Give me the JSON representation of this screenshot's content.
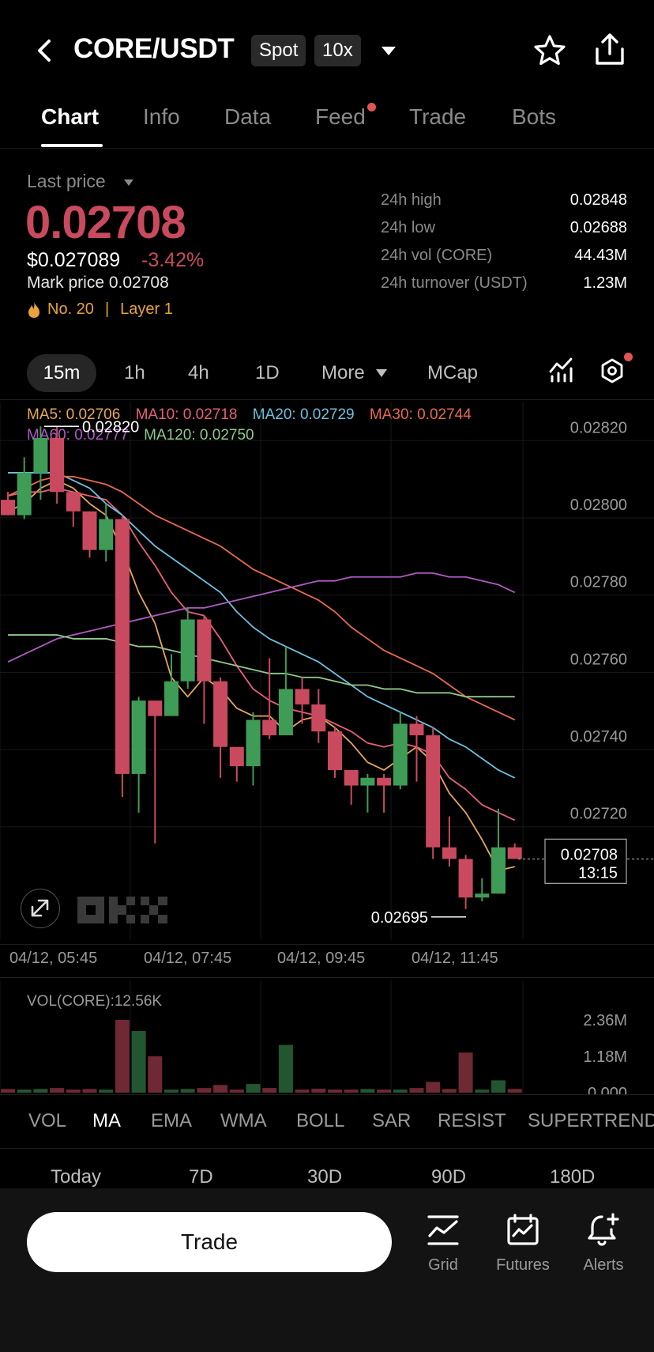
{
  "header": {
    "pair": "CORE/USDT",
    "market_type": "Spot",
    "leverage": "10x"
  },
  "tabs": [
    {
      "label": "Chart",
      "active": true
    },
    {
      "label": "Info"
    },
    {
      "label": "Data"
    },
    {
      "label": "Feed",
      "has_dot": true
    },
    {
      "label": "Trade"
    },
    {
      "label": "Bots"
    }
  ],
  "price": {
    "label": "Last price",
    "last": "0.02708",
    "usd": "$0.027089",
    "change": "-3.42%",
    "mark": "Mark price 0.02708",
    "rank": "No. 20",
    "rank_sep": "|",
    "category": "Layer 1",
    "down_color": "#c94a5e",
    "up_color": "#3f9c57"
  },
  "stats": [
    {
      "label": "24h high",
      "value": "0.02848"
    },
    {
      "label": "24h low",
      "value": "0.02688"
    },
    {
      "label": "24h vol (CORE)",
      "value": "44.43M"
    },
    {
      "label": "24h turnover (USDT)",
      "value": "1.23M"
    }
  ],
  "intervals": {
    "active": "15m",
    "items": [
      "1h",
      "4h",
      "1D",
      "More",
      "MCap"
    ]
  },
  "ma_legend": {
    "ma5": "MA5: 0.02706",
    "ma10": "MA10: 0.02718",
    "ma20": "MA20: 0.02729",
    "ma30": "MA30: 0.02744",
    "ma60": "MA60: 0.02777",
    "ma120": "MA120: 0.02750"
  },
  "chart_data": {
    "type": "candlestick",
    "y_ticks": [
      "0.02820",
      "0.02800",
      "0.02780",
      "0.02760",
      "0.02740",
      "0.02720"
    ],
    "ylim": [
      0.02688,
      0.02826
    ],
    "x_ticks": [
      "04/12, 05:45",
      "04/12, 07:45",
      "04/12, 09:45",
      "04/12, 11:45"
    ],
    "high_marker": "0.02820",
    "low_marker": "0.02695",
    "current_price": "0.02708",
    "countdown": "13:15",
    "candles": [
      [
        0.02801,
        0.02797,
        0.02803,
        0.02797
      ],
      [
        0.02797,
        0.02808,
        0.02812,
        0.02796
      ],
      [
        0.02808,
        0.02817,
        0.0282,
        0.02801
      ],
      [
        0.02817,
        0.02803,
        0.0282,
        0.028
      ],
      [
        0.02803,
        0.02798,
        0.02802,
        0.02794
      ],
      [
        0.02798,
        0.02788,
        0.02798,
        0.02786
      ],
      [
        0.02788,
        0.02796,
        0.028,
        0.02785
      ],
      [
        0.02796,
        0.0273,
        0.02797,
        0.02724
      ],
      [
        0.0273,
        0.02749,
        0.0275,
        0.0272
      ],
      [
        0.02749,
        0.02745,
        0.02746,
        0.02712
      ],
      [
        0.02745,
        0.02754,
        0.02761,
        0.0275
      ],
      [
        0.02754,
        0.0277,
        0.02773,
        0.02752
      ],
      [
        0.0277,
        0.02754,
        0.02771,
        0.02743
      ],
      [
        0.02754,
        0.02737,
        0.02755,
        0.02729
      ],
      [
        0.02737,
        0.02732,
        0.02736,
        0.02728
      ],
      [
        0.02732,
        0.02744,
        0.02746,
        0.02727
      ],
      [
        0.02744,
        0.0274,
        0.0276,
        0.02739
      ],
      [
        0.0274,
        0.02752,
        0.02763,
        0.02742
      ],
      [
        0.02752,
        0.02748,
        0.02755,
        0.02743
      ],
      [
        0.02748,
        0.02741,
        0.02752,
        0.02738
      ],
      [
        0.02741,
        0.02731,
        0.02742,
        0.02729
      ],
      [
        0.02731,
        0.02727,
        0.02731,
        0.02722
      ],
      [
        0.02727,
        0.02729,
        0.0273,
        0.0272
      ],
      [
        0.02729,
        0.02727,
        0.0273,
        0.0272
      ],
      [
        0.02727,
        0.02743,
        0.02746,
        0.02726
      ],
      [
        0.02743,
        0.0274,
        0.02745,
        0.02728
      ],
      [
        0.0274,
        0.02711,
        0.02742,
        0.02708
      ],
      [
        0.02711,
        0.02708,
        0.02719,
        0.02706
      ],
      [
        0.02708,
        0.02698,
        0.02709,
        0.02695
      ],
      [
        0.02698,
        0.02699,
        0.02703,
        0.02697
      ],
      [
        0.02699,
        0.02711,
        0.02721,
        0.02699
      ],
      [
        0.02711,
        0.02708,
        0.02712,
        0.02708
      ]
    ],
    "ma_lines": [
      {
        "name": "MA5",
        "color": "#e8a65a",
        "values": [
          0.02798,
          0.028,
          0.02804,
          0.02806,
          0.02804,
          0.028,
          0.02797,
          0.02788,
          0.02777,
          0.02769,
          0.02755,
          0.0275,
          0.02755,
          0.02752,
          0.02747,
          0.02745,
          0.02745,
          0.02741,
          0.02744,
          0.02745,
          0.02742,
          0.02738,
          0.02733,
          0.02731,
          0.02734,
          0.02737,
          0.02733,
          0.02725,
          0.0272,
          0.02713,
          0.02705,
          0.02706
        ]
      },
      {
        "name": "MA10",
        "color": "#e8607a",
        "values": [
          0.02802,
          0.02803,
          0.02803,
          0.02804,
          0.02803,
          0.02802,
          0.02801,
          0.02797,
          0.0279,
          0.02784,
          0.02777,
          0.02772,
          0.02771,
          0.02765,
          0.02758,
          0.02752,
          0.02749,
          0.02747,
          0.02746,
          0.02745,
          0.02743,
          0.02741,
          0.02738,
          0.02737,
          0.02738,
          0.02737,
          0.02735,
          0.02729,
          0.02726,
          0.02722,
          0.0272,
          0.02718
        ]
      },
      {
        "name": "MA20",
        "color": "#6dc0e0",
        "values": [
          0.02808,
          0.02808,
          0.02808,
          0.02808,
          0.02806,
          0.02804,
          0.028,
          0.02797,
          0.02793,
          0.02789,
          0.02786,
          0.02783,
          0.0278,
          0.02777,
          0.02772,
          0.02768,
          0.02765,
          0.02763,
          0.02761,
          0.02759,
          0.02756,
          0.02753,
          0.0275,
          0.02748,
          0.02746,
          0.02744,
          0.02742,
          0.02739,
          0.02737,
          0.02734,
          0.02731,
          0.02729
        ]
      },
      {
        "name": "MA30",
        "color": "#e9694f",
        "values": [
          0.02802,
          0.02804,
          0.02806,
          0.02807,
          0.02807,
          0.02806,
          0.02805,
          0.02803,
          0.028,
          0.02797,
          0.02795,
          0.02793,
          0.02791,
          0.02789,
          0.02786,
          0.02783,
          0.02781,
          0.02779,
          0.02777,
          0.02775,
          0.02772,
          0.02768,
          0.02765,
          0.02762,
          0.0276,
          0.02758,
          0.02756,
          0.02753,
          0.0275,
          0.02748,
          0.02746,
          0.02744
        ]
      },
      {
        "name": "MA60",
        "color": "#b05bc5",
        "values": [
          0.02759,
          0.02761,
          0.02763,
          0.02765,
          0.02766,
          0.02767,
          0.02768,
          0.02769,
          0.0277,
          0.02771,
          0.02772,
          0.02773,
          0.02773,
          0.02774,
          0.02775,
          0.02776,
          0.02777,
          0.02778,
          0.02779,
          0.0278,
          0.0278,
          0.02781,
          0.02781,
          0.02781,
          0.02781,
          0.02782,
          0.02782,
          0.02781,
          0.02781,
          0.0278,
          0.02779,
          0.02777
        ]
      },
      {
        "name": "MA120",
        "color": "#8fca8a",
        "values": [
          0.02766,
          0.02766,
          0.02766,
          0.02766,
          0.02765,
          0.02765,
          0.02765,
          0.02764,
          0.02763,
          0.02763,
          0.02762,
          0.02761,
          0.0276,
          0.02759,
          0.02758,
          0.02757,
          0.02756,
          0.02756,
          0.02755,
          0.02755,
          0.02754,
          0.02753,
          0.02753,
          0.02752,
          0.02752,
          0.02751,
          0.02751,
          0.02751,
          0.0275,
          0.0275,
          0.0275,
          0.0275
        ]
      }
    ]
  },
  "volume": {
    "label": "VOL(CORE):12.56K",
    "ticks": [
      "2.36M",
      "1.18M",
      "0.000"
    ],
    "ylim": [
      0,
      2.36
    ],
    "values": [
      0.12,
      0.1,
      0.12,
      0.15,
      0.1,
      0.12,
      0.1,
      2.36,
      2.0,
      1.18,
      0.1,
      0.12,
      0.15,
      0.25,
      0.1,
      0.28,
      0.15,
      1.55,
      0.1,
      0.13,
      0.1,
      0.1,
      0.12,
      0.1,
      0.1,
      0.15,
      0.35,
      0.12,
      1.3,
      0.1,
      0.4,
      0.12
    ]
  },
  "indicators": {
    "active": "MA",
    "items": [
      "VOL",
      "MA",
      "EMA",
      "WMA",
      "BOLL",
      "SAR",
      "RESIST",
      "SUPERTREND"
    ]
  },
  "periods": [
    "Today",
    "7D",
    "30D",
    "90D",
    "180D"
  ],
  "bottom_bar": {
    "trade_label": "Trade",
    "grid_label": "Grid",
    "futures_label": "Futures",
    "alerts_label": "Alerts"
  }
}
